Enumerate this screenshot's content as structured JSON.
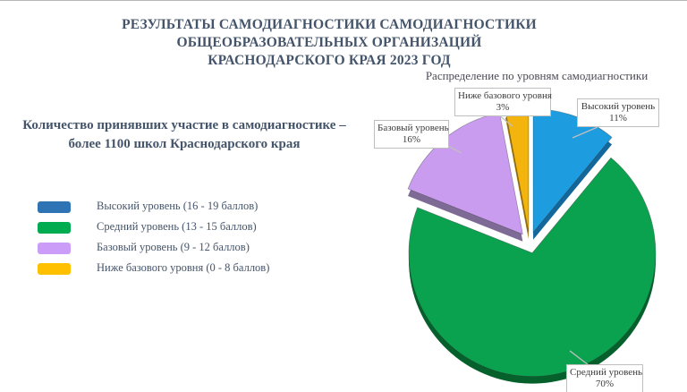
{
  "page": {
    "title_lines": [
      "РЕЗУЛЬТАТЫ САМОДИАГНОСТИКИ САМОДИАГНОСТИКИ",
      "ОБЩЕОБРАЗОВАТЕЛЬНЫХ ОРГАНИЗАЦИЙ",
      "КРАСНОДАРСКОГО КРАЯ 2023 ГОД"
    ],
    "subtitle_lines": [
      "Количество принявших участие в самодиагностике –",
      "более 1100 школ Краснодарского края"
    ],
    "heading_color": "#44546A"
  },
  "legend": {
    "items": [
      {
        "label": "Высокий уровень (16 - 19 баллов)",
        "color": "#2E74B5"
      },
      {
        "label": "Средний уровень (13 - 15 баллов)",
        "color": "#00AC4F"
      },
      {
        "label": "Базовый уровень (9 - 12 баллов)",
        "color": "#CC9DF8"
      },
      {
        "label": "Ниже базового уровня (0 - 8 баллов)",
        "color": "#FFC000"
      }
    ]
  },
  "chart_data": {
    "type": "pie",
    "style": "3d-exploded",
    "title": "Распределение по уровням самодиагностики",
    "labels": [
      "Высокий уровень",
      "Средний уровень",
      "Базовый уровень",
      "Ниже базового уровня"
    ],
    "values": [
      11,
      70,
      16,
      3
    ],
    "pct_labels": [
      "11%",
      "70%",
      "16%",
      "3%"
    ],
    "unit": "%",
    "colors": [
      "#1E9CE0",
      "#0AA24E",
      "#C99CEF",
      "#F3B40D"
    ],
    "depth_colors": [
      "#14679B",
      "#05602C",
      "#7D6B96",
      "#9E7406"
    ],
    "start_angle_deg": 0,
    "direction": "clockwise",
    "legend_position": "left",
    "callout_border_color": "#BFBFBF"
  }
}
